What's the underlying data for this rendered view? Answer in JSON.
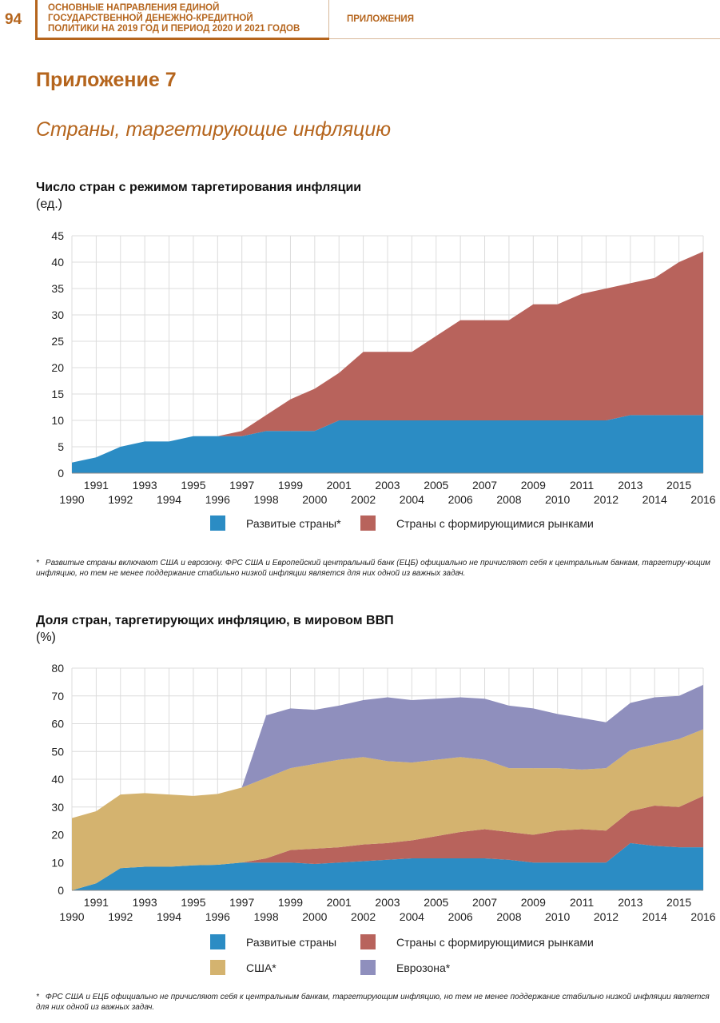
{
  "header": {
    "page_number": "94",
    "doc_title_lines": [
      "ОСНОВНЫЕ НАПРАВЛЕНИЯ ЕДИНОЙ",
      "ГОСУДАРСТВЕННОЙ ДЕНЕЖНО-КРЕДИТНОЙ",
      "ПОЛИТИКИ НА 2019 ГОД И ПЕРИОД 2020 И 2021 ГОДОВ"
    ],
    "section": "ПРИЛОЖЕНИЯ"
  },
  "appendix_title": "Приложение 7",
  "appendix_subtitle": "Страны, таргетирующие инфляцию",
  "colors": {
    "accent": "#b5651d",
    "developed": "#2b8cc4",
    "emerging": "#b8635c",
    "usa": "#d4b36f",
    "eurozone": "#8f8fbd",
    "grid": "#dcdcdc"
  },
  "chart_data": [
    {
      "type": "area",
      "stacked": true,
      "title": "Число стран с режимом таргетирования инфляции",
      "unit": "(ед.)",
      "x": [
        1990,
        1991,
        1992,
        1993,
        1994,
        1995,
        1996,
        1997,
        1998,
        1999,
        2000,
        2001,
        2002,
        2003,
        2004,
        2005,
        2006,
        2007,
        2008,
        2009,
        2010,
        2011,
        2012,
        2013,
        2014,
        2015,
        2016
      ],
      "ylim": [
        0,
        45
      ],
      "yticks": [
        0,
        5,
        10,
        15,
        20,
        25,
        30,
        35,
        40,
        45
      ],
      "grid": true,
      "legend_position": "bottom",
      "series": [
        {
          "name": "Развитые страны*",
          "color": "#2b8cc4",
          "values": [
            2,
            3,
            5,
            6,
            6,
            7,
            7,
            7,
            8,
            8,
            8,
            10,
            10,
            10,
            10,
            10,
            10,
            10,
            10,
            10,
            10,
            10,
            10,
            11,
            11,
            11,
            11
          ]
        },
        {
          "name": "Страны с формирующимися рынками",
          "color": "#b8635c",
          "values": [
            0,
            0,
            0,
            0,
            0,
            0,
            0,
            1,
            3,
            6,
            8,
            9,
            13,
            13,
            13,
            16,
            19,
            19,
            19,
            22,
            22,
            24,
            25,
            25,
            26,
            29,
            31
          ]
        }
      ],
      "footnote_marker": "*",
      "footnote": "Развитые страны включают США и еврозону. ФРС США и Европейский центральный банк (ЕЦБ) официально не причисляют себя к центральным банкам, таргетиру-ющим инфляцию, но тем не менее поддержание стабильно низкой инфляции является для них одной из важных задач."
    },
    {
      "type": "area",
      "stacked": true,
      "title": "Доля стран, таргетирующих инфляцию, в мировом ВВП",
      "unit": "(%)",
      "x": [
        1990,
        1991,
        1992,
        1993,
        1994,
        1995,
        1996,
        1997,
        1998,
        1999,
        2000,
        2001,
        2002,
        2003,
        2004,
        2005,
        2006,
        2007,
        2008,
        2009,
        2010,
        2011,
        2012,
        2013,
        2014,
        2015,
        2016
      ],
      "ylim": [
        0,
        80
      ],
      "yticks": [
        0,
        10,
        20,
        30,
        40,
        50,
        60,
        70,
        80
      ],
      "grid": true,
      "legend_position": "bottom",
      "series": [
        {
          "name": "Развитые страны",
          "color": "#2b8cc4",
          "values": [
            0,
            2.5,
            8,
            8.5,
            8.5,
            9,
            9.2,
            10,
            10,
            10,
            9.5,
            10,
            10.5,
            11,
            11.5,
            11.5,
            11.5,
            11.5,
            11,
            10,
            10,
            10,
            10,
            17,
            16,
            15.5,
            15.5
          ]
        },
        {
          "name": "Страны с формирующимися рынками",
          "color": "#b8635c",
          "values": [
            0,
            0,
            0,
            0,
            0,
            0,
            0,
            0,
            1.5,
            4.5,
            5.5,
            5.5,
            6,
            6,
            6.5,
            8,
            9.5,
            10.5,
            10,
            10,
            11.5,
            12,
            11.5,
            11.5,
            14.5,
            14.5,
            18.5
          ]
        },
        {
          "name": "США*",
          "color": "#d4b36f",
          "values": [
            26,
            26,
            26.5,
            26.5,
            26,
            25,
            25.5,
            27,
            29,
            29.5,
            30.5,
            31.5,
            31.5,
            29.5,
            28,
            27.5,
            27,
            25,
            23,
            24,
            22.5,
            21.5,
            22.5,
            22,
            22,
            24.5,
            24
          ]
        },
        {
          "name": "Еврозона*",
          "color": "#8f8fbd",
          "values": [
            0,
            0,
            0,
            0,
            0,
            0,
            0,
            0,
            22.5,
            21.5,
            19.5,
            19.5,
            20.5,
            23,
            22.5,
            22,
            21.5,
            22,
            22.5,
            21.5,
            19.5,
            18.5,
            16.5,
            17,
            17,
            15.5,
            16
          ]
        }
      ],
      "footnote_marker": "*",
      "footnote": "ФРС США и ЕЦБ официально не причисляют себя к центральным банкам, таргетирующим инфляцию, но тем не менее поддержание стабильно низкой инфляции является для них одной из важных задач."
    }
  ]
}
